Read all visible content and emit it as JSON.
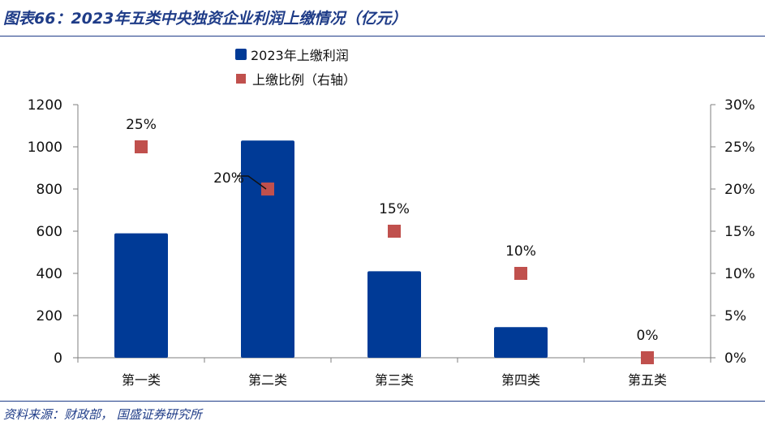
{
  "header": {
    "title": "图表66：2023年五类中央独资企业利润上缴情况（亿元）"
  },
  "footer": {
    "source": "资料来源：财政部，  国盛证券研究所"
  },
  "legend": {
    "bar_label": "2023年上缴利润",
    "point_label": "上缴比例（右轴）"
  },
  "colors": {
    "bar": "#003a96",
    "point": "#c0504d",
    "title": "#1f3c88"
  },
  "chart_data": {
    "type": "bar",
    "categories": [
      "第一类",
      "第二类",
      "第三类",
      "第四类",
      "第五类"
    ],
    "series": [
      {
        "name": "2023年上缴利润",
        "type": "bar",
        "axis": "left",
        "values": [
          590,
          1030,
          410,
          145,
          0
        ]
      },
      {
        "name": "上缴比例（右轴）",
        "type": "scatter",
        "axis": "right",
        "values": [
          25,
          20,
          15,
          10,
          0
        ],
        "labels": [
          "25%",
          "20%",
          "15%",
          "10%",
          "0%"
        ]
      }
    ],
    "ylim": [
      0,
      1200
    ],
    "yticks": [
      0,
      200,
      400,
      600,
      800,
      1000,
      1200
    ],
    "ytick_labels": [
      "0",
      "200",
      "400",
      "600",
      "800",
      "1000",
      "1200"
    ],
    "y2lim": [
      0,
      30
    ],
    "y2ticks": [
      0,
      5,
      10,
      15,
      20,
      25,
      30
    ],
    "y2tick_labels": [
      "0%",
      "5%",
      "10%",
      "15%",
      "20%",
      "25%",
      "30%"
    ],
    "legend_position": "top-center",
    "grid": false
  }
}
